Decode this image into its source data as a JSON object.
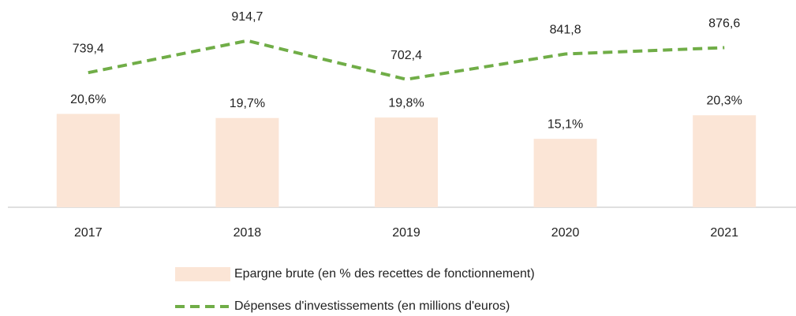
{
  "chart_data": {
    "type": "bar_line",
    "categories": [
      "2017",
      "2018",
      "2019",
      "2020",
      "2021"
    ],
    "series": [
      {
        "name": "Epargne brute (en % des recettes de fonctionnement)",
        "type": "bar",
        "color": "#fbe5d6",
        "values": [
          20.6,
          19.7,
          19.8,
          15.1,
          20.3
        ],
        "value_labels": [
          "20,6%",
          "19,7%",
          "19,8%",
          "15,1%",
          "20,3%"
        ]
      },
      {
        "name": "Dépenses d'investissements (en millions d'euros)",
        "type": "line",
        "axis": "y2",
        "color": "#70ad47",
        "dashed": true,
        "values": [
          739.4,
          914.7,
          702.4,
          841.8,
          876.6
        ],
        "value_labels": [
          "739,4",
          "914,7",
          "702,4",
          "841,8",
          "876,6"
        ]
      }
    ],
    "ylim": [
      0,
      44
    ],
    "y2lim": [
      0,
      1095
    ],
    "grid": false,
    "legend": "bottom"
  }
}
